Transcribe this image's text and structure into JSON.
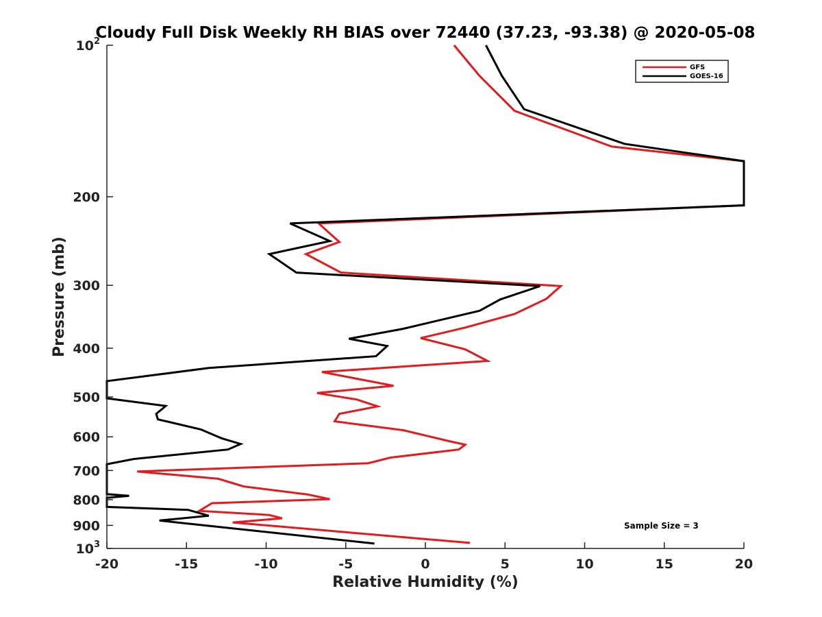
{
  "chart_data": {
    "type": "line",
    "title": "Cloudy Full Disk Weekly RH BIAS over 72440 (37.23, -93.38) @ 2020-05-08",
    "xlabel": "Relative Humidity (%)",
    "ylabel": "Pressure (mb)",
    "xlim": [
      -20,
      20
    ],
    "ylim": [
      100,
      1000
    ],
    "y_scale": "log",
    "y_reversed": true,
    "grid": false,
    "legend_position": "top-right",
    "annotation": "Sample Size = 3",
    "x_ticks": [
      {
        "value": -20,
        "label": "-20"
      },
      {
        "value": -15,
        "label": "-15"
      },
      {
        "value": -10,
        "label": "-10"
      },
      {
        "value": -5,
        "label": "-5"
      },
      {
        "value": 0,
        "label": "0"
      },
      {
        "value": 5,
        "label": "5"
      },
      {
        "value": 10,
        "label": "10"
      },
      {
        "value": 15,
        "label": "15"
      },
      {
        "value": 20,
        "label": "20"
      }
    ],
    "y_ticks": [
      {
        "value": 100,
        "label": "10",
        "sup": "2"
      },
      {
        "value": 200,
        "label": "200",
        "sup": ""
      },
      {
        "value": 300,
        "label": "300",
        "sup": ""
      },
      {
        "value": 400,
        "label": "400",
        "sup": ""
      },
      {
        "value": 500,
        "label": "500",
        "sup": ""
      },
      {
        "value": 600,
        "label": "600",
        "sup": ""
      },
      {
        "value": 700,
        "label": "700",
        "sup": ""
      },
      {
        "value": 800,
        "label": "800",
        "sup": ""
      },
      {
        "value": 900,
        "label": "900",
        "sup": ""
      },
      {
        "value": 1000,
        "label": "10",
        "sup": "3"
      }
    ],
    "series": [
      {
        "name": "GFS",
        "color": "#e41a1c",
        "points": [
          [
            1.8,
            100
          ],
          [
            3.4,
            115
          ],
          [
            5.6,
            135
          ],
          [
            11.7,
            159
          ],
          [
            20,
            170
          ],
          [
            20,
            208
          ],
          [
            -6.7,
            226
          ],
          [
            -5.4,
            246
          ],
          [
            -7.5,
            260
          ],
          [
            -5.3,
            283
          ],
          [
            8.5,
            301
          ],
          [
            7.6,
            319
          ],
          [
            5.6,
            342
          ],
          [
            2.5,
            364
          ],
          [
            -0.3,
            382
          ],
          [
            2.5,
            402
          ],
          [
            3.9,
            424
          ],
          [
            -6.5,
            446
          ],
          [
            -2,
            475
          ],
          [
            -6.8,
            491
          ],
          [
            -4.3,
            506
          ],
          [
            -3,
            522
          ],
          [
            -5.4,
            540
          ],
          [
            -5.7,
            559
          ],
          [
            -1.4,
            582
          ],
          [
            1.4,
            611
          ],
          [
            2.5,
            622
          ],
          [
            2.1,
            636
          ],
          [
            -2.2,
            660
          ],
          [
            -3.6,
            677
          ],
          [
            -18.1,
            703
          ],
          [
            -13,
            727
          ],
          [
            -11.4,
            753
          ],
          [
            -7.4,
            781
          ],
          [
            -6,
            798
          ],
          [
            -13.4,
            813
          ],
          [
            -14.2,
            842
          ],
          [
            -9.8,
            858
          ],
          [
            -9,
            871
          ],
          [
            -12.1,
            888
          ],
          [
            2.8,
            975
          ]
        ]
      },
      {
        "name": "GOES-16",
        "color": "#000000",
        "points": [
          [
            3.8,
            100
          ],
          [
            4.8,
            115
          ],
          [
            6.2,
            134
          ],
          [
            12.5,
            157
          ],
          [
            20,
            170
          ],
          [
            20,
            208
          ],
          [
            -8.5,
            226
          ],
          [
            -6,
            245
          ],
          [
            -9.8,
            260
          ],
          [
            -8.1,
            283
          ],
          [
            7.2,
            301
          ],
          [
            4.7,
            320
          ],
          [
            3.4,
            337
          ],
          [
            -1.4,
            366
          ],
          [
            -4.8,
            383
          ],
          [
            -2.4,
            396
          ],
          [
            -3.1,
            415
          ],
          [
            -13.6,
            438
          ],
          [
            -20,
            465
          ],
          [
            -20,
            503
          ],
          [
            -16.3,
            521
          ],
          [
            -16.9,
            540
          ],
          [
            -16.8,
            554
          ],
          [
            -14.1,
            580
          ],
          [
            -12.8,
            604
          ],
          [
            -11.6,
            620
          ],
          [
            -12.4,
            636
          ],
          [
            -18.3,
            664
          ],
          [
            -20,
            680
          ],
          [
            -20,
            780
          ],
          [
            -18.6,
            786
          ],
          [
            -20,
            793
          ],
          [
            -20,
            827
          ],
          [
            -14.9,
            838
          ],
          [
            -13.6,
            861
          ],
          [
            -16.7,
            880
          ],
          [
            -3.2,
            978
          ]
        ]
      }
    ]
  }
}
